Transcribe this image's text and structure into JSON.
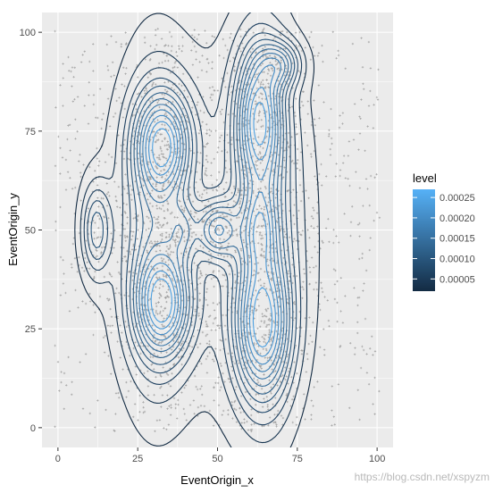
{
  "chart_data": {
    "type": "contour",
    "xlabel": "EventOrigin_x",
    "ylabel": "EventOrigin_y",
    "xlim": [
      0,
      100
    ],
    "ylim": [
      0,
      100
    ],
    "x_ticks": [
      0,
      25,
      50,
      75,
      100
    ],
    "y_ticks": [
      0,
      25,
      50,
      75,
      100
    ],
    "grid": true,
    "background_color": "#ebebeb",
    "grid_color": "#ffffff",
    "point_color": "#9e9e9e",
    "legend": {
      "title": "level",
      "placement": "right",
      "ticks": [
        {
          "label": "0.00025",
          "value": 0.00025
        },
        {
          "label": "0.00020",
          "value": 0.0002
        },
        {
          "label": "0.00015",
          "value": 0.00015
        },
        {
          "label": "0.00010",
          "value": 0.0001
        },
        {
          "label": "0.00005",
          "value": 5e-05
        }
      ],
      "range": [
        2e-05,
        0.00027
      ],
      "low_color": "#132b43",
      "high_color": "#56b1f7"
    },
    "density_modes": [
      {
        "x": 12,
        "y": 50,
        "sx": 3.2,
        "sy": 8,
        "w": 0.55
      },
      {
        "x": 33,
        "y": 72,
        "sx": 6,
        "sy": 9,
        "w": 1.0
      },
      {
        "x": 33,
        "y": 31,
        "sx": 6,
        "sy": 9,
        "w": 1.0
      },
      {
        "x": 63,
        "y": 79,
        "sx": 5,
        "sy": 12,
        "w": 0.95
      },
      {
        "x": 70,
        "y": 92,
        "sx": 4.5,
        "sy": 4,
        "w": 0.55
      },
      {
        "x": 64,
        "y": 25,
        "sx": 6,
        "sy": 12,
        "w": 0.95
      },
      {
        "x": 50,
        "y": 50,
        "sx": 4.5,
        "sy": 5,
        "w": 0.75
      },
      {
        "x": 39,
        "y": 50,
        "sx": 3,
        "sy": 5,
        "w": 0.35
      },
      {
        "x": 63,
        "y": 50,
        "sx": 3.5,
        "sy": 7,
        "w": 0.45
      },
      {
        "x": 30,
        "y": 50,
        "sx": 7,
        "sy": 26,
        "w": 0.5
      },
      {
        "x": 65,
        "y": 50,
        "sx": 7,
        "sy": 30,
        "w": 0.55
      },
      {
        "x": 48,
        "y": 50,
        "sx": 25,
        "sy": 38,
        "w": 0.2
      }
    ],
    "contour_levels": [
      2e-05,
      4e-05,
      6e-05,
      8e-05,
      0.0001,
      0.00012,
      0.00014,
      0.00016,
      0.00018,
      0.0002,
      0.00022,
      0.00024
    ],
    "peak_level": 0.00027
  },
  "watermark": "https://blog.csdn.net/xspyzm"
}
